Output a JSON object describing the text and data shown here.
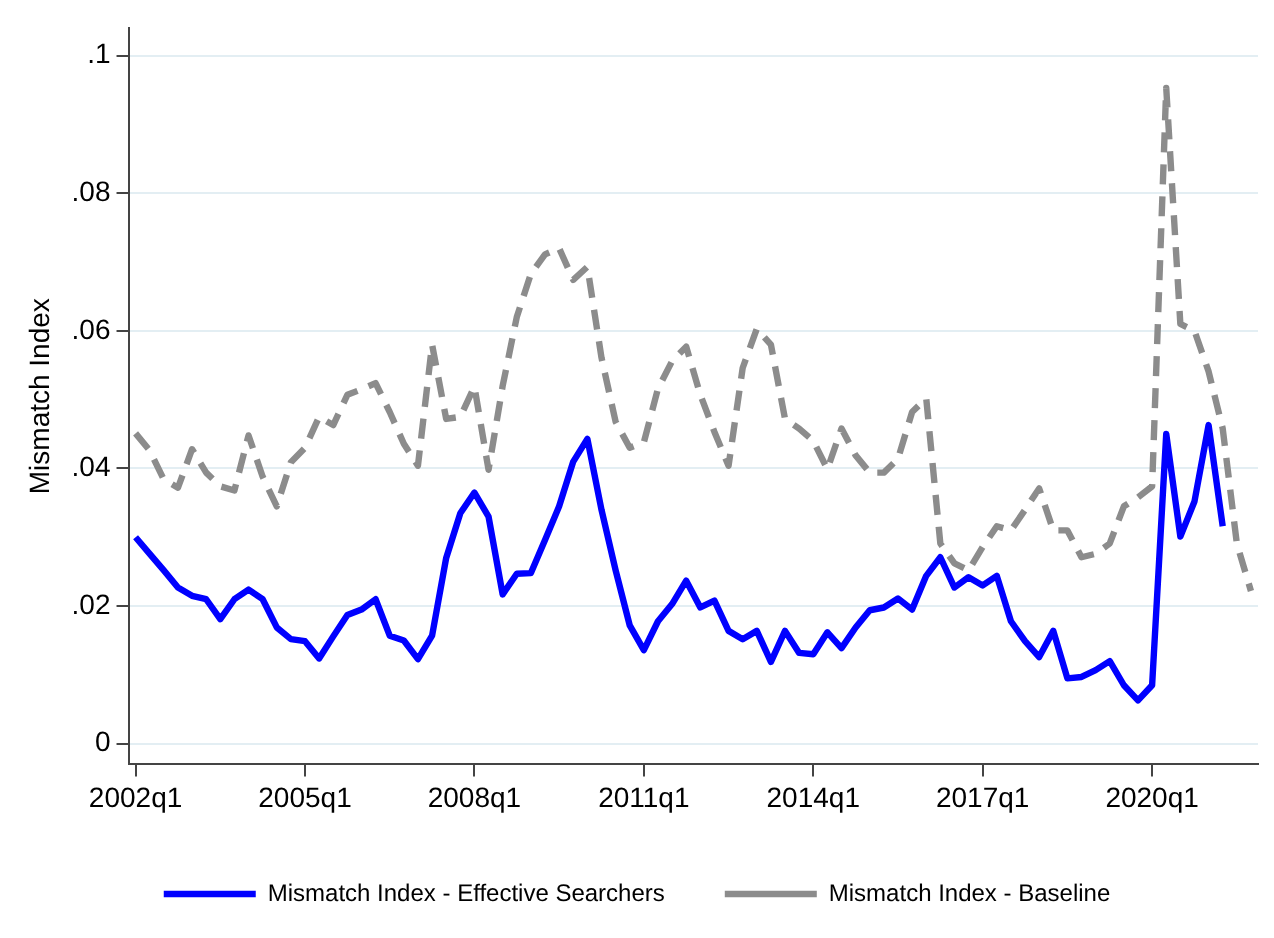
{
  "chart_data": {
    "type": "line",
    "ylabel": "Mismatch Index",
    "categories": [
      "2002q1",
      null,
      null,
      null,
      null,
      null,
      null,
      null,
      null,
      null,
      null,
      null,
      "2005q1",
      null,
      null,
      null,
      null,
      null,
      null,
      null,
      null,
      null,
      null,
      null,
      "2008q1",
      null,
      null,
      null,
      null,
      null,
      null,
      null,
      null,
      null,
      null,
      null,
      "2011q1",
      null,
      null,
      null,
      null,
      null,
      null,
      null,
      null,
      null,
      null,
      null,
      "2014q1",
      null,
      null,
      null,
      null,
      null,
      null,
      null,
      null,
      null,
      null,
      null,
      "2017q1",
      null,
      null,
      null,
      null,
      null,
      null,
      null,
      null,
      null,
      null,
      null,
      "2020q1",
      null,
      null,
      null,
      null,
      null,
      null,
      null
    ],
    "series": [
      {
        "name": "Mismatch Index - Effective Searchers",
        "color": "#0000ff",
        "line_style": "solid",
        "values": [
          0.03,
          0.0276,
          0.0252,
          0.0227,
          0.0215,
          0.021,
          0.0181,
          0.021,
          0.0224,
          0.021,
          0.0169,
          0.0152,
          0.0149,
          0.0124,
          0.0156,
          0.0187,
          0.0195,
          0.021,
          0.0157,
          0.015,
          0.0123,
          0.0157,
          0.027,
          0.0335,
          0.0365,
          0.033,
          0.0217,
          0.0247,
          0.0248,
          0.0296,
          0.0345,
          0.041,
          0.0443,
          0.034,
          0.0252,
          0.0172,
          0.0136,
          0.0178,
          0.0203,
          0.0237,
          0.0198,
          0.0208,
          0.0164,
          0.0152,
          0.0164,
          0.0119,
          0.0164,
          0.0132,
          0.013,
          0.0162,
          0.0139,
          0.0169,
          0.0194,
          0.0198,
          0.0211,
          0.0195,
          0.0244,
          0.0271,
          0.0227,
          0.0242,
          0.023,
          0.0244,
          0.0178,
          0.0149,
          0.0126,
          0.0164,
          0.0095,
          0.0097,
          0.0107,
          0.012,
          0.0085,
          0.0063,
          0.0085,
          0.045,
          0.0301,
          0.0352,
          0.0463,
          0.0316,
          null,
          null
        ]
      },
      {
        "name": "Mismatch Index - Baseline",
        "color": "#8c8c8c",
        "line_style": "dashed",
        "values": [
          0.0451,
          0.0426,
          0.0384,
          0.0372,
          0.0428,
          0.0394,
          0.0374,
          0.0368,
          0.0448,
          0.0388,
          0.0345,
          0.0409,
          0.043,
          0.0475,
          0.0463,
          0.0507,
          0.0515,
          0.0524,
          0.0482,
          0.0436,
          0.0404,
          0.058,
          0.0472,
          0.0475,
          0.0519,
          0.0398,
          0.052,
          0.062,
          0.0683,
          0.0711,
          0.072,
          0.0674,
          0.0693,
          0.0561,
          0.0468,
          0.043,
          0.0438,
          0.0516,
          0.0556,
          0.0577,
          0.0507,
          0.0453,
          0.0404,
          0.0546,
          0.0603,
          0.058,
          0.0472,
          0.0458,
          0.044,
          0.0399,
          0.0458,
          0.0419,
          0.0394,
          0.0394,
          0.0414,
          0.0482,
          0.0502,
          0.0291,
          0.0262,
          0.0252,
          0.0286,
          0.0316,
          0.031,
          0.034,
          0.0371,
          0.031,
          0.031,
          0.0271,
          0.0276,
          0.0291,
          0.0345,
          0.0358,
          0.0374,
          0.0953,
          0.061,
          0.06,
          0.0541,
          0.0458,
          0.0291,
          0.0222
        ]
      }
    ],
    "ylim": [
      -0.003,
      0.104
    ],
    "yticks": [
      {
        "value": 0,
        "label": "0"
      },
      {
        "value": 0.02,
        "label": ".02"
      },
      {
        "value": 0.04,
        "label": ".04"
      },
      {
        "value": 0.06,
        "label": ".06"
      },
      {
        "value": 0.08,
        "label": ".08"
      },
      {
        "value": 0.1,
        "label": ".1"
      }
    ],
    "grid": "y",
    "legend": "bottom",
    "marker": "none"
  }
}
